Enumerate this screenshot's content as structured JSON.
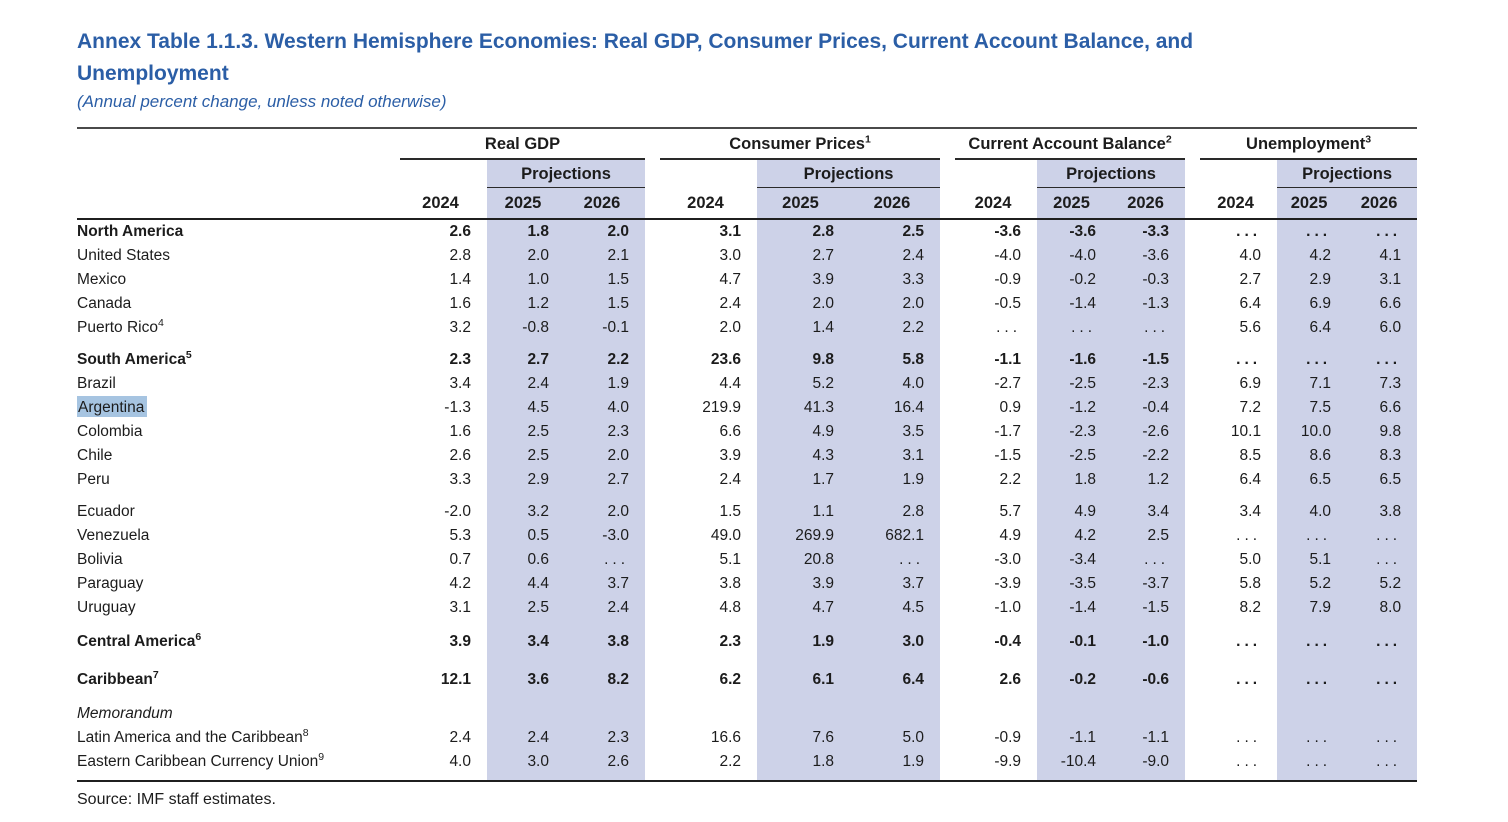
{
  "title": "Annex Table 1.1.3. Western Hemisphere Economies: Real GDP, Consumer Prices, Current Account Balance, and Unemployment",
  "subtitle": "(Annual percent change, unless noted otherwise)",
  "source": "Source: IMF staff estimates.",
  "colors": {
    "title_blue": "#2b5ea6",
    "projection_shade": "#cdd2e8",
    "argentina_highlight": "#a6c4e1"
  },
  "table": {
    "projections_label": "Projections",
    "years": [
      "2024",
      "2025",
      "2026"
    ],
    "groups": [
      {
        "label": "Real GDP",
        "sup": ""
      },
      {
        "label": "Consumer Prices",
        "sup": "1"
      },
      {
        "label": "Current Account Balance",
        "sup": "2"
      },
      {
        "label": "Unemployment",
        "sup": "3"
      }
    ],
    "rows": [
      {
        "label": "North America",
        "sup": "",
        "bold": true,
        "values": [
          "2.6",
          "1.8",
          "2.0",
          "3.1",
          "2.8",
          "2.5",
          "-3.6",
          "-3.6",
          "-3.3",
          "...",
          "...",
          "..."
        ]
      },
      {
        "label": "United States",
        "values": [
          "2.8",
          "2.0",
          "2.1",
          "3.0",
          "2.7",
          "2.4",
          "-4.0",
          "-4.0",
          "-3.6",
          "4.0",
          "4.2",
          "4.1"
        ]
      },
      {
        "label": "Mexico",
        "values": [
          "1.4",
          "1.0",
          "1.5",
          "4.7",
          "3.9",
          "3.3",
          "-0.9",
          "-0.2",
          "-0.3",
          "2.7",
          "2.9",
          "3.1"
        ]
      },
      {
        "label": "Canada",
        "values": [
          "1.6",
          "1.2",
          "1.5",
          "2.4",
          "2.0",
          "2.0",
          "-0.5",
          "-1.4",
          "-1.3",
          "6.4",
          "6.9",
          "6.6"
        ]
      },
      {
        "label": "Puerto Rico",
        "sup": "4",
        "values": [
          "3.2",
          "-0.8",
          "-0.1",
          "2.0",
          "1.4",
          "2.2",
          "...",
          "...",
          "...",
          "5.6",
          "6.4",
          "6.0"
        ]
      },
      {
        "label": "South America",
        "sup": "5",
        "bold": true,
        "space": 8,
        "values": [
          "2.3",
          "2.7",
          "2.2",
          "23.6",
          "9.8",
          "5.8",
          "-1.1",
          "-1.6",
          "-1.5",
          "...",
          "...",
          "..."
        ]
      },
      {
        "label": "Brazil",
        "values": [
          "3.4",
          "2.4",
          "1.9",
          "4.4",
          "5.2",
          "4.0",
          "-2.7",
          "-2.5",
          "-2.3",
          "6.9",
          "7.1",
          "7.3"
        ]
      },
      {
        "label": "Argentina",
        "highlight": true,
        "values": [
          "-1.3",
          "4.5",
          "4.0",
          "219.9",
          "41.3",
          "16.4",
          "0.9",
          "-1.2",
          "-0.4",
          "7.2",
          "7.5",
          "6.6"
        ]
      },
      {
        "label": "Colombia",
        "values": [
          "1.6",
          "2.5",
          "2.3",
          "6.6",
          "4.9",
          "3.5",
          "-1.7",
          "-2.3",
          "-2.6",
          "10.1",
          "10.0",
          "9.8"
        ]
      },
      {
        "label": "Chile",
        "values": [
          "2.6",
          "2.5",
          "2.0",
          "3.9",
          "4.3",
          "3.1",
          "-1.5",
          "-2.5",
          "-2.2",
          "8.5",
          "8.6",
          "8.3"
        ]
      },
      {
        "label": "Peru",
        "values": [
          "3.3",
          "2.9",
          "2.7",
          "2.4",
          "1.7",
          "1.9",
          "2.2",
          "1.8",
          "1.2",
          "6.4",
          "6.5",
          "6.5"
        ]
      },
      {
        "label": "Ecuador",
        "space": 8,
        "values": [
          "-2.0",
          "3.2",
          "2.0",
          "1.5",
          "1.1",
          "2.8",
          "5.7",
          "4.9",
          "3.4",
          "3.4",
          "4.0",
          "3.8"
        ]
      },
      {
        "label": "Venezuela",
        "values": [
          "5.3",
          "0.5",
          "-3.0",
          "49.0",
          "269.9",
          "682.1",
          "4.9",
          "4.2",
          "2.5",
          "...",
          "...",
          "..."
        ]
      },
      {
        "label": "Bolivia",
        "values": [
          "0.7",
          "0.6",
          "...",
          "5.1",
          "20.8",
          "...",
          "-3.0",
          "-3.4",
          "...",
          "5.0",
          "5.1",
          "..."
        ]
      },
      {
        "label": "Paraguay",
        "values": [
          "4.2",
          "4.4",
          "3.7",
          "3.8",
          "3.9",
          "3.7",
          "-3.9",
          "-3.5",
          "-3.7",
          "5.8",
          "5.2",
          "5.2"
        ]
      },
      {
        "label": "Uruguay",
        "values": [
          "3.1",
          "2.5",
          "2.4",
          "4.8",
          "4.7",
          "4.5",
          "-1.0",
          "-1.4",
          "-1.5",
          "8.2",
          "7.9",
          "8.0"
        ]
      },
      {
        "label": "Central America",
        "sup": "6",
        "bold": true,
        "space": 10,
        "values": [
          "3.9",
          "3.4",
          "3.8",
          "2.3",
          "1.9",
          "3.0",
          "-0.4",
          "-0.1",
          "-1.0",
          "...",
          "...",
          "..."
        ]
      },
      {
        "label": "Caribbean",
        "sup": "7",
        "bold": true,
        "space": 14,
        "values": [
          "12.1",
          "3.6",
          "8.2",
          "6.2",
          "6.1",
          "6.4",
          "2.6",
          "-0.2",
          "-0.6",
          "...",
          "...",
          "..."
        ]
      },
      {
        "label": "Memorandum",
        "italic": true,
        "space": 10,
        "values": []
      },
      {
        "label": "Latin America and the Caribbean",
        "sup": "8",
        "values": [
          "2.4",
          "2.4",
          "2.3",
          "16.6",
          "7.6",
          "5.0",
          "-0.9",
          "-1.1",
          "-1.1",
          "...",
          "...",
          "..."
        ]
      },
      {
        "label": "Eastern Caribbean Currency Union",
        "sup": "9",
        "values": [
          "4.0",
          "3.0",
          "2.6",
          "2.2",
          "1.8",
          "1.9",
          "-9.9",
          "-10.4",
          "-9.0",
          "...",
          "...",
          "..."
        ]
      }
    ]
  }
}
